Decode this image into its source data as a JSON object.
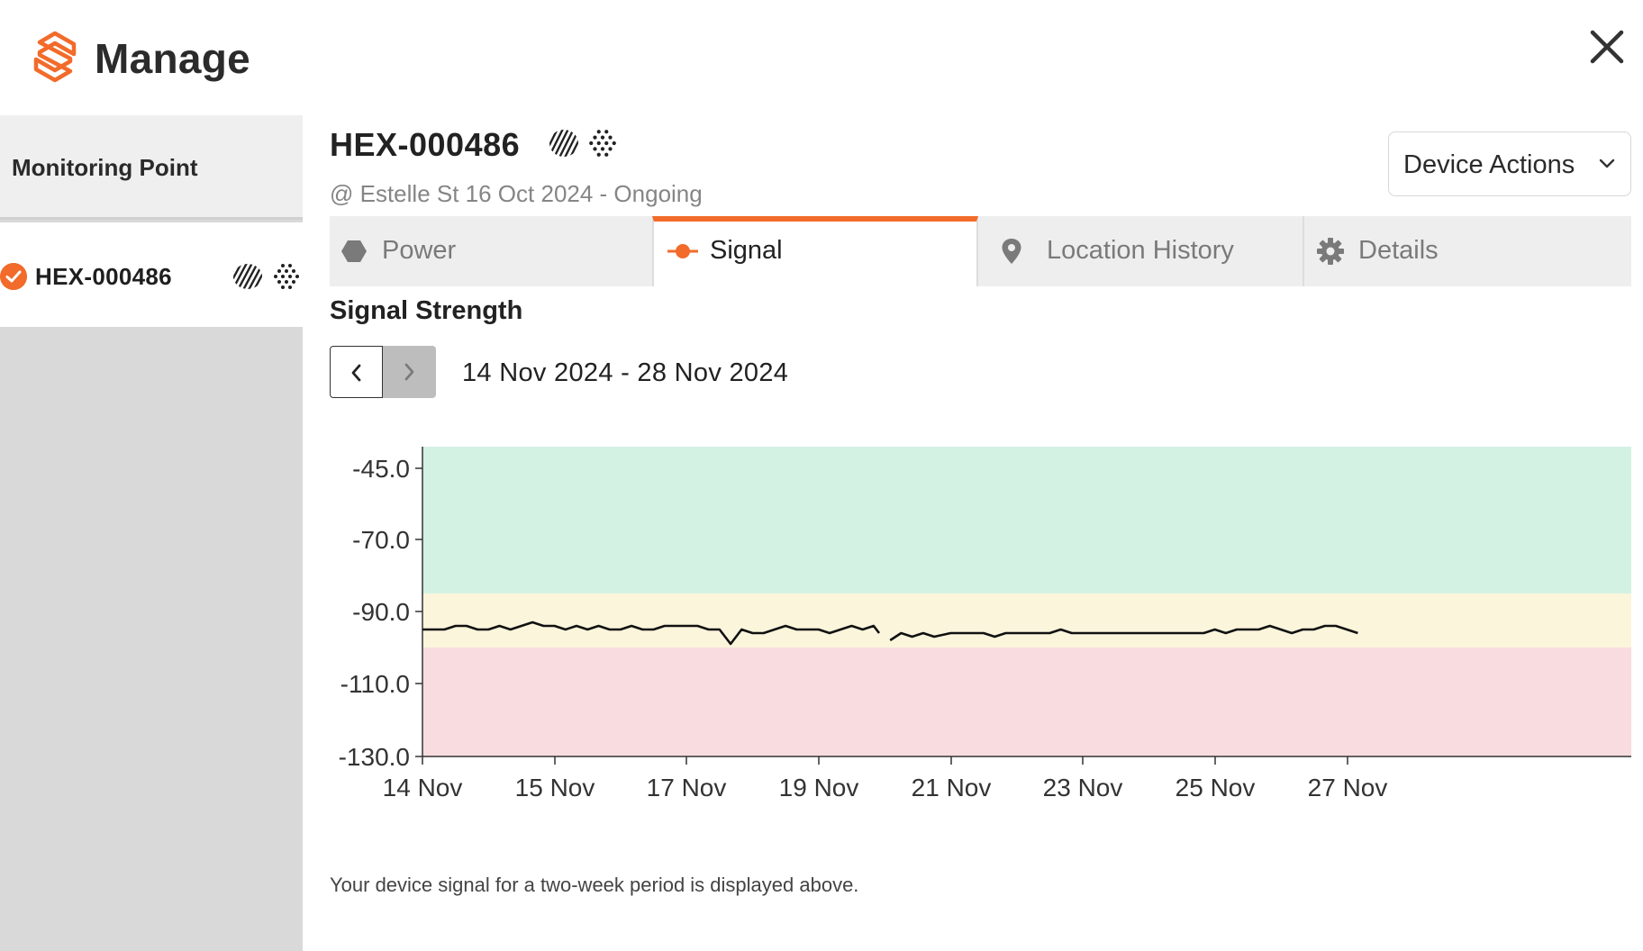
{
  "app": {
    "title": "Manage"
  },
  "sidebar": {
    "header_label": "Monitoring Point",
    "items": [
      {
        "label": "HEX-000486",
        "status": "checked"
      }
    ]
  },
  "device": {
    "id": "HEX-000486",
    "subtitle": "@ Estelle St 16 Oct 2024 - Ongoing",
    "actions_label": "Device Actions"
  },
  "tabs": [
    {
      "label": "Power",
      "icon": "hexagon-icon",
      "active": false
    },
    {
      "label": "Signal",
      "icon": "signal-dot-icon",
      "active": true
    },
    {
      "label": "Location History",
      "icon": "map-pin-icon",
      "active": false
    },
    {
      "label": "Details",
      "icon": "gear-icon",
      "active": false
    }
  ],
  "signal": {
    "section_title": "Signal Strength",
    "date_range": "14 Nov 2024 - 28 Nov 2024",
    "footnote": "Your device signal for a two-week period is displayed above."
  },
  "colors": {
    "accent": "#f26b2a",
    "band_good": "#d3f2e4",
    "band_fair": "#fbf5dc",
    "band_poor": "#f9dcdf"
  },
  "chart_data": {
    "type": "line",
    "title": "",
    "xlabel": "",
    "ylabel": "",
    "y_ticks": [
      "-45.0",
      "-70.0",
      "-90.0",
      "-110.0",
      "-130.0"
    ],
    "x_ticks": [
      "14 Nov",
      "15 Nov",
      "17 Nov",
      "19 Nov",
      "21 Nov",
      "23 Nov",
      "25 Nov",
      "27 Nov"
    ],
    "bands": [
      {
        "from": -45,
        "to": -85,
        "color": "#d3f2e4"
      },
      {
        "from": -85,
        "to": -100,
        "color": "#fbf5dc"
      },
      {
        "from": -100,
        "to": -130,
        "color": "#f9dcdf"
      }
    ],
    "series": [
      {
        "segments": [
          [
            [
              "2024-11-14T00",
              -95
            ],
            [
              "2024-11-14T08",
              -95
            ],
            [
              "2024-11-14T12",
              -94
            ],
            [
              "2024-11-14T16",
              -94
            ],
            [
              "2024-11-14T20",
              -95
            ],
            [
              "2024-11-15T00",
              -95
            ],
            [
              "2024-11-15T04",
              -94
            ],
            [
              "2024-11-15T08",
              -95
            ],
            [
              "2024-11-15T12",
              -94
            ],
            [
              "2024-11-15T16",
              -93
            ],
            [
              "2024-11-15T20",
              -94
            ],
            [
              "2024-11-16T00",
              -94
            ],
            [
              "2024-11-16T04",
              -95
            ],
            [
              "2024-11-16T08",
              -94
            ],
            [
              "2024-11-16T12",
              -95
            ],
            [
              "2024-11-16T16",
              -94
            ],
            [
              "2024-11-16T20",
              -95
            ],
            [
              "2024-11-17T00",
              -95
            ],
            [
              "2024-11-17T04",
              -94
            ],
            [
              "2024-11-17T08",
              -95
            ],
            [
              "2024-11-17T12",
              -95
            ],
            [
              "2024-11-17T16",
              -94
            ],
            [
              "2024-11-17T20",
              -94
            ],
            [
              "2024-11-18T00",
              -94
            ],
            [
              "2024-11-18T04",
              -94
            ],
            [
              "2024-11-18T08",
              -95
            ],
            [
              "2024-11-18T12",
              -95
            ],
            [
              "2024-11-18T16",
              -99
            ],
            [
              "2024-11-18T20",
              -95
            ],
            [
              "2024-11-19T00",
              -96
            ],
            [
              "2024-11-19T04",
              -96
            ],
            [
              "2024-11-19T08",
              -95
            ],
            [
              "2024-11-19T12",
              -94
            ],
            [
              "2024-11-19T16",
              -95
            ],
            [
              "2024-11-19T20",
              -95
            ],
            [
              "2024-11-20T00",
              -95
            ],
            [
              "2024-11-20T04",
              -96
            ],
            [
              "2024-11-20T08",
              -95
            ],
            [
              "2024-11-20T12",
              -94
            ],
            [
              "2024-11-20T16",
              -95
            ],
            [
              "2024-11-20T20",
              -94
            ],
            [
              "2024-11-20T22",
              -96
            ]
          ],
          [
            [
              "2024-11-21T02",
              -98
            ],
            [
              "2024-11-21T06",
              -96
            ],
            [
              "2024-11-21T10",
              -97
            ],
            [
              "2024-11-21T14",
              -96
            ],
            [
              "2024-11-21T18",
              -97
            ],
            [
              "2024-11-22T00",
              -96
            ],
            [
              "2024-11-22T04",
              -96
            ],
            [
              "2024-11-22T08",
              -96
            ],
            [
              "2024-11-22T12",
              -96
            ],
            [
              "2024-11-22T16",
              -97
            ],
            [
              "2024-11-22T20",
              -96
            ],
            [
              "2024-11-23T00",
              -96
            ],
            [
              "2024-11-23T04",
              -96
            ],
            [
              "2024-11-23T08",
              -96
            ],
            [
              "2024-11-23T12",
              -96
            ],
            [
              "2024-11-23T16",
              -95
            ],
            [
              "2024-11-23T20",
              -96
            ],
            [
              "2024-11-24T00",
              -96
            ],
            [
              "2024-11-24T04",
              -96
            ],
            [
              "2024-11-24T08",
              -96
            ],
            [
              "2024-11-24T12",
              -96
            ],
            [
              "2024-11-24T16",
              -96
            ],
            [
              "2024-11-24T20",
              -96
            ],
            [
              "2024-11-25T00",
              -96
            ],
            [
              "2024-11-25T04",
              -96
            ],
            [
              "2024-11-25T08",
              -96
            ],
            [
              "2024-11-25T12",
              -96
            ],
            [
              "2024-11-25T16",
              -96
            ],
            [
              "2024-11-25T20",
              -96
            ],
            [
              "2024-11-26T00",
              -95
            ],
            [
              "2024-11-26T04",
              -96
            ],
            [
              "2024-11-26T08",
              -95
            ],
            [
              "2024-11-26T12",
              -95
            ],
            [
              "2024-11-26T16",
              -95
            ],
            [
              "2024-11-26T20",
              -94
            ],
            [
              "2024-11-27T00",
              -95
            ],
            [
              "2024-11-27T04",
              -96
            ],
            [
              "2024-11-27T08",
              -95
            ],
            [
              "2024-11-27T12",
              -95
            ],
            [
              "2024-11-27T16",
              -94
            ],
            [
              "2024-11-27T20",
              -94
            ],
            [
              "2024-11-28T00",
              -95
            ],
            [
              "2024-11-28T04",
              -96
            ]
          ]
        ]
      }
    ]
  }
}
